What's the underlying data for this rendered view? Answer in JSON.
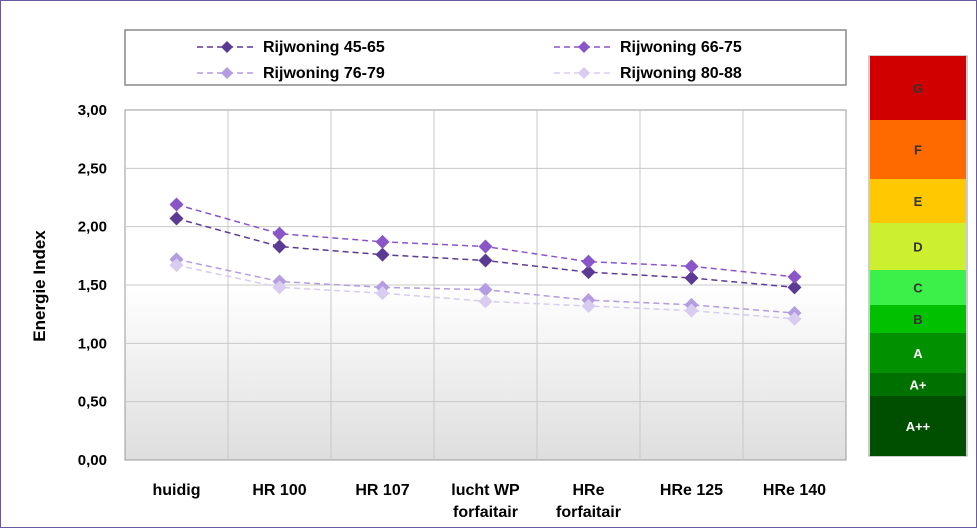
{
  "chart_data": {
    "type": "line",
    "title": "",
    "xlabel": "",
    "ylabel": "Energie Index",
    "ylim": [
      0,
      3
    ],
    "yticks": [
      "0,00",
      "0,50",
      "1,00",
      "1,50",
      "2,00",
      "2,50",
      "3,00"
    ],
    "categories": [
      [
        "huidig"
      ],
      [
        "HR 100"
      ],
      [
        "HR 107"
      ],
      [
        "lucht WP",
        "forfaitair"
      ],
      [
        "HRe",
        "forfaitair"
      ],
      [
        "HRe 125"
      ],
      [
        "HRe 140"
      ]
    ],
    "grid": true,
    "legend_position": "top",
    "series": [
      {
        "name": "Rijwoning 45-65",
        "color": "#5b3a94",
        "values": [
          2.07,
          1.83,
          1.76,
          1.71,
          1.61,
          1.56,
          1.48
        ]
      },
      {
        "name": "Rijwoning 66-75",
        "color": "#8a55c8",
        "values": [
          2.19,
          1.94,
          1.87,
          1.83,
          1.7,
          1.66,
          1.57
        ]
      },
      {
        "name": "Rijwoning 76-79",
        "color": "#b39ce0",
        "values": [
          1.72,
          1.53,
          1.48,
          1.46,
          1.37,
          1.33,
          1.26
        ]
      },
      {
        "name": "Rijwoning 80-88",
        "color": "#d8ccf0",
        "values": [
          1.67,
          1.48,
          1.43,
          1.36,
          1.32,
          1.28,
          1.21
        ]
      }
    ]
  },
  "energy_label_scale": [
    {
      "label": "G",
      "color": "#d00000"
    },
    {
      "label": "F",
      "color": "#ff6a00"
    },
    {
      "label": "E",
      "color": "#ffc800"
    },
    {
      "label": "D",
      "color": "#ccf030"
    },
    {
      "label": "C",
      "color": "#3cf04a"
    },
    {
      "label": "B",
      "color": "#00c000"
    },
    {
      "label": "A",
      "color": "#009000"
    },
    {
      "label": "A+",
      "color": "#007000"
    },
    {
      "label": "A++",
      "color": "#004e00"
    }
  ]
}
